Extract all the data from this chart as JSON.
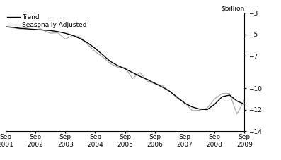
{
  "ylabel": "$billion",
  "ylim": [
    -14,
    -3
  ],
  "yticks": [
    -3,
    -5,
    -7,
    -10,
    -12,
    -14
  ],
  "xlim": [
    0,
    32
  ],
  "xtick_positions": [
    0,
    4,
    8,
    12,
    16,
    20,
    24,
    28,
    32
  ],
  "xtick_labels": [
    "Sep\n2001",
    "Sep\n2002",
    "Sep\n2003",
    "Sep\n2004",
    "Sep\n2005",
    "Sep\n2006",
    "Sep\n2007",
    "Sep\n2008",
    "Sep\n2009"
  ],
  "trend_color": "#000000",
  "sa_color": "#aaaaaa",
  "trend_lw": 1.0,
  "sa_lw": 0.9,
  "background_color": "#ffffff",
  "legend_labels": [
    "Trend",
    "Seasonally Adjusted"
  ],
  "trend_x": [
    0,
    1,
    2,
    3,
    4,
    5,
    6,
    7,
    8,
    9,
    10,
    11,
    12,
    13,
    14,
    15,
    16,
    17,
    18,
    19,
    20,
    21,
    22,
    23,
    24,
    25,
    26,
    27,
    28,
    29,
    30,
    31,
    32
  ],
  "trend_y": [
    -4.3,
    -4.35,
    -4.45,
    -4.5,
    -4.55,
    -4.6,
    -4.65,
    -4.75,
    -4.9,
    -5.1,
    -5.4,
    -5.8,
    -6.3,
    -6.9,
    -7.5,
    -7.9,
    -8.2,
    -8.55,
    -8.9,
    -9.2,
    -9.55,
    -9.9,
    -10.3,
    -10.85,
    -11.4,
    -11.75,
    -11.95,
    -12.0,
    -11.5,
    -10.8,
    -10.65,
    -11.2,
    -11.5
  ],
  "sa_x": [
    0,
    1,
    2,
    3,
    4,
    5,
    6,
    7,
    8,
    9,
    10,
    11,
    12,
    13,
    14,
    15,
    16,
    17,
    18,
    19,
    20,
    21,
    22,
    23,
    24,
    25,
    26,
    27,
    28,
    29,
    30,
    31,
    32
  ],
  "sa_y": [
    -4.3,
    -4.4,
    -4.5,
    -4.35,
    -4.25,
    -4.6,
    -4.9,
    -4.85,
    -5.45,
    -5.1,
    -5.25,
    -5.95,
    -6.6,
    -7.1,
    -7.7,
    -8.05,
    -8.1,
    -9.1,
    -8.55,
    -9.35,
    -9.6,
    -9.75,
    -10.3,
    -10.95,
    -11.35,
    -12.1,
    -12.05,
    -11.85,
    -11.0,
    -10.5,
    -10.5,
    -12.4,
    -11.1
  ]
}
